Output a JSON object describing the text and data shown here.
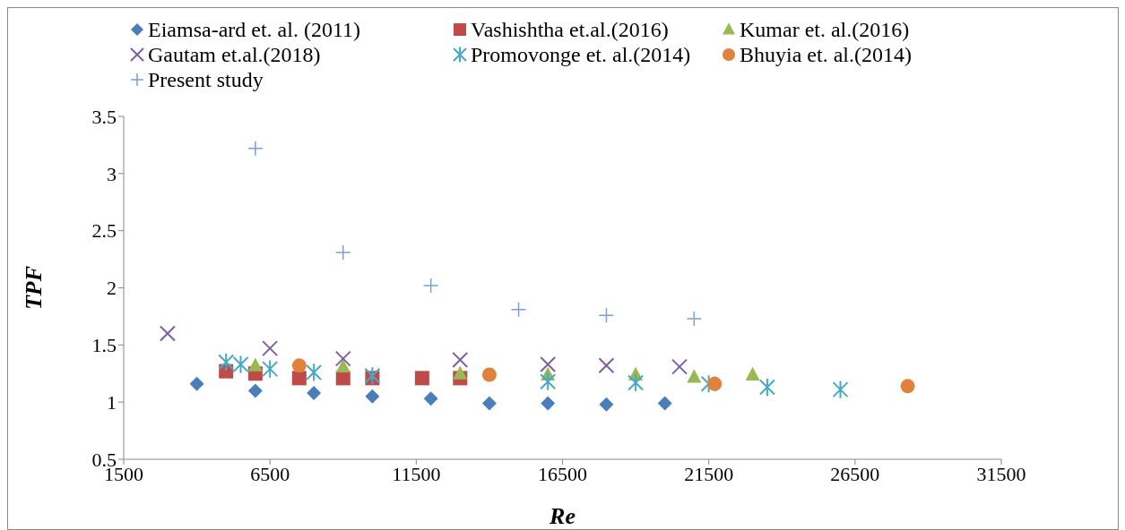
{
  "chart_data": {
    "type": "scatter",
    "xlabel": "Re",
    "ylabel": "TPF",
    "xlim": [
      1500,
      31500
    ],
    "xticks": [
      1500,
      6500,
      11500,
      16500,
      21500,
      26500,
      31500
    ],
    "ylim": [
      0.5,
      3.5
    ],
    "yticks": [
      0.5,
      1,
      1.5,
      2,
      2.5,
      3,
      3.5
    ],
    "grid": false,
    "legend": "top",
    "series": [
      {
        "name": "Eiamsa-ard et. al. (2011)",
        "color": "#4a7ebb",
        "marker": "diamond",
        "x": [
          4000,
          6000,
          8000,
          10000,
          12000,
          14000,
          16000,
          18000,
          20000
        ],
        "values": [
          1.16,
          1.1,
          1.08,
          1.05,
          1.03,
          0.99,
          0.99,
          0.98,
          0.99
        ]
      },
      {
        "name": "Vashishtha et.al.(2016)",
        "color": "#be4b48",
        "marker": "square",
        "x": [
          5000,
          6000,
          7500,
          9000,
          10000,
          11700,
          13000
        ],
        "values": [
          1.27,
          1.25,
          1.21,
          1.21,
          1.21,
          1.21,
          1.21
        ]
      },
      {
        "name": "Kumar et. al.(2016)",
        "color": "#98b954",
        "marker": "triangle",
        "x": [
          6000,
          9000,
          13000,
          16000,
          19000,
          21000,
          23000
        ],
        "values": [
          1.32,
          1.31,
          1.25,
          1.24,
          1.24,
          1.22,
          1.24
        ]
      },
      {
        "name": "Gautam et.al.(2018)",
        "color": "#7d60a0",
        "marker": "cross",
        "x": [
          3000,
          6500,
          9000,
          13000,
          16000,
          18000,
          20500
        ],
        "values": [
          1.6,
          1.47,
          1.38,
          1.37,
          1.33,
          1.32,
          1.31
        ]
      },
      {
        "name": "Promovonge et. al.(2014)",
        "color": "#46aac5",
        "x": [
          5000,
          5500,
          6500,
          8000,
          10000,
          16000,
          19000,
          21500,
          23500,
          26000
        ],
        "values": [
          1.35,
          1.33,
          1.29,
          1.26,
          1.23,
          1.18,
          1.17,
          1.16,
          1.13,
          1.11
        ]
      },
      {
        "name": "Bhuyia et. al.(2014)",
        "color": "#e0823c",
        "marker": "circle",
        "x": [
          7500,
          14000,
          21700,
          28300
        ],
        "values": [
          1.32,
          1.24,
          1.16,
          1.14
        ]
      },
      {
        "name": "Present study",
        "color": "#7f9ed1",
        "marker": "plus",
        "x": [
          6000,
          9000,
          12000,
          15000,
          18000,
          21000
        ],
        "values": [
          3.22,
          2.31,
          2.02,
          1.81,
          1.76,
          1.73
        ]
      }
    ]
  }
}
